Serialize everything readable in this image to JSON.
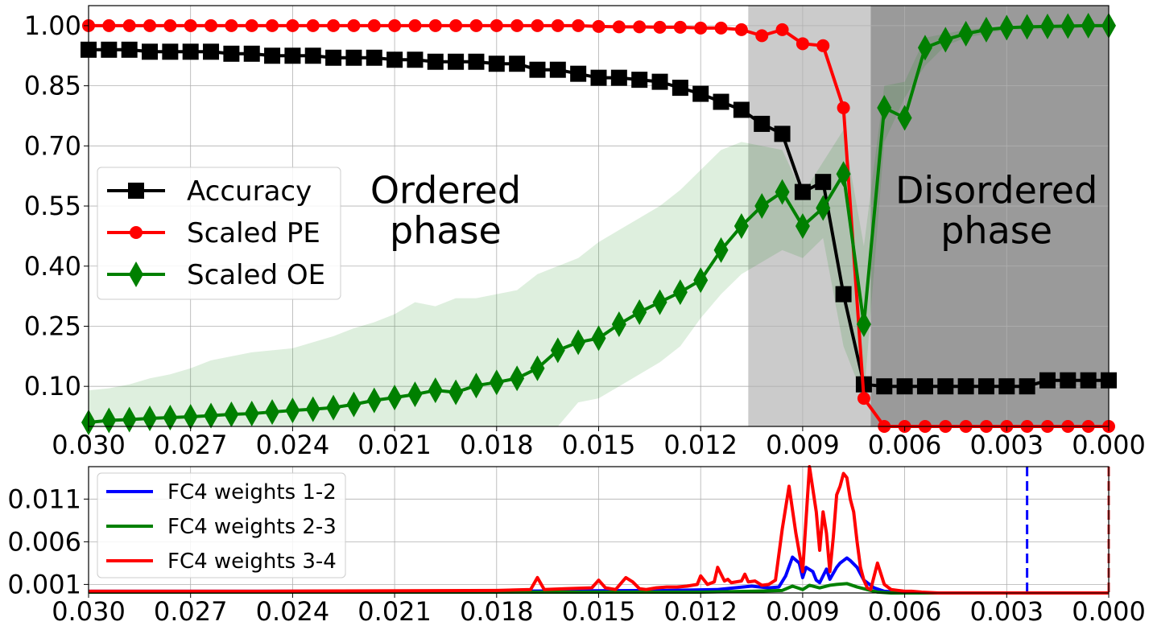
{
  "chart_data": [
    {
      "type": "line",
      "xlim": [
        0.03,
        0.0
      ],
      "ylim": [
        0.0,
        1.05
      ],
      "x_ticks": [
        "0.030",
        "0.027",
        "0.024",
        "0.021",
        "0.018",
        "0.015",
        "0.012",
        "0.009",
        "0.006",
        "0.003",
        "0.000"
      ],
      "y_ticks": [
        "1.00",
        "0.85",
        "0.70",
        "0.55",
        "0.40",
        "0.25",
        "0.10"
      ],
      "grid": true,
      "legend_position": "center-left",
      "phase_regions": [
        {
          "from": 0.0106,
          "to": 0.007,
          "color": "#cbcbcb"
        },
        {
          "from": 0.007,
          "to": 0.0,
          "color": "#9a9a9a"
        }
      ],
      "annotations": [
        {
          "text": [
            "Ordered",
            "phase"
          ],
          "x": 0.0195,
          "y": 0.545
        },
        {
          "text": [
            "Disordered",
            "phase"
          ],
          "x": 0.0033,
          "y": 0.545
        }
      ],
      "series": [
        {
          "name": "Accuracy",
          "color": "#000000",
          "marker": "square",
          "x": [
            0.03,
            0.0294,
            0.0288,
            0.0282,
            0.0276,
            0.027,
            0.0264,
            0.0258,
            0.0252,
            0.0246,
            0.024,
            0.0234,
            0.0228,
            0.0222,
            0.0216,
            0.021,
            0.0204,
            0.0198,
            0.0192,
            0.0186,
            0.018,
            0.0174,
            0.0168,
            0.0162,
            0.0156,
            0.015,
            0.0144,
            0.0138,
            0.0132,
            0.0126,
            0.012,
            0.0114,
            0.0108,
            0.0102,
            0.0096,
            0.009,
            0.0084,
            0.0078,
            0.0072,
            0.0066,
            0.006,
            0.0054,
            0.0048,
            0.0042,
            0.0036,
            0.003,
            0.0024,
            0.0018,
            0.0012,
            0.0006,
            0.0
          ],
          "y": [
            0.94,
            0.94,
            0.94,
            0.935,
            0.935,
            0.935,
            0.935,
            0.93,
            0.93,
            0.925,
            0.925,
            0.925,
            0.92,
            0.92,
            0.92,
            0.915,
            0.915,
            0.91,
            0.91,
            0.91,
            0.905,
            0.905,
            0.89,
            0.89,
            0.88,
            0.87,
            0.87,
            0.865,
            0.86,
            0.845,
            0.83,
            0.81,
            0.79,
            0.755,
            0.73,
            0.585,
            0.61,
            0.33,
            0.105,
            0.1,
            0.1,
            0.1,
            0.1,
            0.1,
            0.1,
            0.1,
            0.1,
            0.115,
            0.115,
            0.115,
            0.115
          ]
        },
        {
          "name": "Scaled PE",
          "color": "#ff0000",
          "marker": "circle",
          "x": [
            0.03,
            0.0294,
            0.0288,
            0.0282,
            0.0276,
            0.027,
            0.0264,
            0.0258,
            0.0252,
            0.0246,
            0.024,
            0.0234,
            0.0228,
            0.0222,
            0.0216,
            0.021,
            0.0204,
            0.0198,
            0.0192,
            0.0186,
            0.018,
            0.0174,
            0.0168,
            0.0162,
            0.0156,
            0.015,
            0.0144,
            0.0138,
            0.0132,
            0.0126,
            0.012,
            0.0114,
            0.0108,
            0.0102,
            0.0096,
            0.009,
            0.0084,
            0.0078,
            0.0072,
            0.0066,
            0.006,
            0.0054,
            0.0048,
            0.0042,
            0.0036,
            0.003,
            0.0024,
            0.0018,
            0.0012,
            0.0006,
            0.0
          ],
          "y": [
            1.0,
            1.0,
            1.0,
            1.0,
            1.0,
            1.0,
            1.0,
            1.0,
            1.0,
            1.0,
            1.0,
            1.0,
            1.0,
            1.0,
            1.0,
            1.0,
            1.0,
            1.0,
            1.0,
            1.0,
            1.0,
            1.0,
            1.0,
            1.0,
            1.0,
            0.998,
            0.997,
            0.997,
            0.996,
            0.996,
            0.994,
            0.994,
            0.99,
            0.975,
            0.99,
            0.955,
            0.95,
            0.795,
            0.07,
            0.0,
            0.0,
            0.0,
            0.0,
            0.0,
            0.0,
            0.0,
            0.0,
            0.0,
            0.0,
            0.0,
            0.0
          ]
        },
        {
          "name": "Scaled OE",
          "color": "#008000",
          "marker": "thin-diamond",
          "x": [
            0.03,
            0.0294,
            0.0288,
            0.0282,
            0.0276,
            0.027,
            0.0264,
            0.0258,
            0.0252,
            0.0246,
            0.024,
            0.0234,
            0.0228,
            0.0222,
            0.0216,
            0.021,
            0.0204,
            0.0198,
            0.0192,
            0.0186,
            0.018,
            0.0174,
            0.0168,
            0.0162,
            0.0156,
            0.015,
            0.0144,
            0.0138,
            0.0132,
            0.0126,
            0.012,
            0.0114,
            0.0108,
            0.0102,
            0.0096,
            0.009,
            0.0084,
            0.0078,
            0.0072,
            0.0066,
            0.006,
            0.0054,
            0.0048,
            0.0042,
            0.0036,
            0.003,
            0.0024,
            0.0018,
            0.0012,
            0.0006,
            0.0
          ],
          "y": [
            0.01,
            0.015,
            0.017,
            0.02,
            0.022,
            0.024,
            0.027,
            0.03,
            0.032,
            0.036,
            0.04,
            0.043,
            0.047,
            0.055,
            0.065,
            0.072,
            0.08,
            0.09,
            0.085,
            0.102,
            0.11,
            0.12,
            0.145,
            0.19,
            0.21,
            0.22,
            0.255,
            0.285,
            0.31,
            0.335,
            0.365,
            0.44,
            0.5,
            0.55,
            0.585,
            0.5,
            0.545,
            0.63,
            0.255,
            0.795,
            0.77,
            0.945,
            0.965,
            0.98,
            0.99,
            0.995,
            0.997,
            0.998,
            0.999,
            1.0,
            1.0
          ],
          "band_lower": [
            0.0,
            0.0,
            0.0,
            0.0,
            0.0,
            0.0,
            0.0,
            0.0,
            0.0,
            0.0,
            0.0,
            0.0,
            0.0,
            0.0,
            0.0,
            0.0,
            0.0,
            0.0,
            0.0,
            0.0,
            0.0,
            0.0,
            0.0,
            0.0,
            0.06,
            0.07,
            0.1,
            0.13,
            0.16,
            0.2,
            0.27,
            0.33,
            0.38,
            0.41,
            0.44,
            0.42,
            0.47,
            0.2,
            0.07,
            0.71,
            0.82,
            0.9,
            0.95,
            0.97,
            0.98,
            0.99,
            0.99,
            0.99,
            0.99,
            1.0,
            1.0
          ],
          "band_upper": [
            0.09,
            0.095,
            0.105,
            0.12,
            0.13,
            0.145,
            0.165,
            0.175,
            0.185,
            0.19,
            0.195,
            0.21,
            0.225,
            0.245,
            0.26,
            0.28,
            0.31,
            0.3,
            0.32,
            0.32,
            0.33,
            0.34,
            0.38,
            0.4,
            0.42,
            0.46,
            0.49,
            0.52,
            0.55,
            0.59,
            0.64,
            0.69,
            0.71,
            0.7,
            0.69,
            0.58,
            0.66,
            0.74,
            0.45,
            0.85,
            0.86,
            0.97,
            0.98,
            0.99,
            0.995,
            0.997,
            0.998,
            0.999,
            1.0,
            1.0,
            1.0
          ]
        }
      ]
    },
    {
      "type": "line",
      "xlim": [
        0.03,
        0.0
      ],
      "ylim": [
        0.0,
        0.0148
      ],
      "x_ticks": [
        "0.030",
        "0.027",
        "0.024",
        "0.021",
        "0.018",
        "0.015",
        "0.012",
        "0.009",
        "0.006",
        "0.003",
        "0.000"
      ],
      "y_ticks": [
        "0.011",
        "0.006",
        "0.001"
      ],
      "grid": true,
      "legend_position": "top-left",
      "vlines": [
        {
          "x": 0.0024,
          "color": "#0000ff",
          "style": "dashed"
        },
        {
          "x": 0.0,
          "color": "#d62728",
          "style": "dashed"
        }
      ],
      "series": [
        {
          "name": "FC4 weights 1-2",
          "color": "#0000ff",
          "x": [
            0.03,
            0.018,
            0.013,
            0.0115,
            0.011,
            0.0105,
            0.01,
            0.0097,
            0.0095,
            0.0093,
            0.0091,
            0.009,
            0.0089,
            0.0087,
            0.0086,
            0.0085,
            0.0084,
            0.0083,
            0.0082,
            0.008,
            0.0079,
            0.0078,
            0.0077,
            0.0076,
            0.0074,
            0.0072,
            0.0069,
            0.0066,
            0.0062,
            0.0058,
            0.0
          ],
          "y": [
            0.0002,
            0.0002,
            0.0003,
            0.0004,
            0.0006,
            0.0008,
            0.0006,
            0.0007,
            0.002,
            0.0042,
            0.0035,
            0.0018,
            0.003,
            0.0025,
            0.0015,
            0.0012,
            0.002,
            0.0028,
            0.0016,
            0.003,
            0.0035,
            0.0038,
            0.0041,
            0.0038,
            0.003,
            0.0015,
            0.0006,
            0.0002,
            0.0001,
            0.0,
            0.0
          ]
        },
        {
          "name": "FC4 weights 2-3",
          "color": "#008000",
          "x": [
            0.03,
            0.012,
            0.0105,
            0.0096,
            0.0093,
            0.009,
            0.0088,
            0.0085,
            0.0082,
            0.008,
            0.0077,
            0.0074,
            0.0071,
            0.0068,
            0.0064,
            0.0
          ],
          "y": [
            0.0001,
            0.0001,
            0.0002,
            0.0003,
            0.0008,
            0.0004,
            0.0009,
            0.0006,
            0.0009,
            0.001,
            0.0011,
            0.0007,
            0.0004,
            0.0001,
            0.0,
            0.0
          ]
        },
        {
          "name": "FC4 weights 3-4",
          "color": "#ff0000",
          "x": [
            0.03,
            0.025,
            0.018,
            0.017,
            0.0168,
            0.0166,
            0.016,
            0.0152,
            0.015,
            0.0148,
            0.0145,
            0.0142,
            0.014,
            0.0138,
            0.0136,
            0.0133,
            0.013,
            0.0127,
            0.0124,
            0.0121,
            0.012,
            0.0118,
            0.0116,
            0.0115,
            0.0113,
            0.0112,
            0.0111,
            0.0108,
            0.0107,
            0.0106,
            0.0104,
            0.0102,
            0.01,
            0.0098,
            0.0096,
            0.0094,
            0.0092,
            0.009,
            0.0088,
            0.0086,
            0.0085,
            0.0084,
            0.0083,
            0.0082,
            0.0081,
            0.008,
            0.0079,
            0.0078,
            0.0077,
            0.0076,
            0.0075,
            0.0074,
            0.0073,
            0.0072,
            0.0071,
            0.007,
            0.0068,
            0.0066,
            0.0064,
            0.0062,
            0.006,
            0.0058,
            0.0055,
            0.005,
            0.0
          ],
          "y": [
            0.0002,
            0.0002,
            0.0003,
            0.0004,
            0.0018,
            0.0004,
            0.0005,
            0.0006,
            0.0015,
            0.0006,
            0.0004,
            0.0018,
            0.0013,
            0.0005,
            0.0004,
            0.0006,
            0.0007,
            0.0007,
            0.0008,
            0.001,
            0.002,
            0.001,
            0.0013,
            0.003,
            0.0014,
            0.0016,
            0.0012,
            0.0014,
            0.0022,
            0.0013,
            0.0014,
            0.0009,
            0.001,
            0.0015,
            0.0075,
            0.0125,
            0.007,
            0.0025,
            0.0148,
            0.0095,
            0.005,
            0.0095,
            0.007,
            0.0025,
            0.0065,
            0.0115,
            0.0125,
            0.014,
            0.0135,
            0.011,
            0.0095,
            0.006,
            0.003,
            0.0015,
            0.0006,
            0.0004,
            0.0035,
            0.001,
            0.0004,
            0.0003,
            0.0002,
            0.0002,
            0.0001,
            0.0,
            0.0
          ]
        }
      ]
    }
  ]
}
